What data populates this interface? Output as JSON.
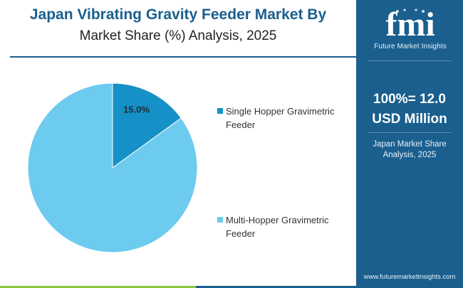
{
  "title": {
    "line1": "Japan Vibrating Gravity Feeder Market By",
    "line2": "Market Share (%) Analysis, 2025"
  },
  "side_panel": {
    "logo_letters": "fmi",
    "logo_tagline": "Future Market Insights",
    "total_line1": "100%= 12.0",
    "total_line2": "USD Million",
    "subtitle_line1": "Japan Market Share",
    "subtitle_line2": "Analysis, 2025",
    "website": "www.futuremarketinsights.com"
  },
  "colors": {
    "brand_blue": "#1a5f8e",
    "dark_slice": "#1591c7",
    "light_slice": "#6dcbef",
    "bar_green": "#8cc63f",
    "bar_blue": "#1a5f8e"
  },
  "chart_data": {
    "type": "pie",
    "slices": [
      {
        "name": "Single Hopper Gravimetric Feeder",
        "value": 15.0,
        "label": "15.0%",
        "color": "#1591c7"
      },
      {
        "name": "Multi-Hopper Gravimetric Feeder",
        "value": 85.0,
        "label": "",
        "color": "#6dcbef"
      }
    ],
    "legend": [
      {
        "line1": "Single Hopper Gravimetric",
        "line2": "Feeder",
        "color": "#1591c7"
      },
      {
        "line1": "Multi-Hopper Gravimetric",
        "line2": "Feeder",
        "color": "#6dcbef"
      }
    ],
    "legend_position": "right",
    "start_angle": "12 o'clock, clockwise"
  }
}
